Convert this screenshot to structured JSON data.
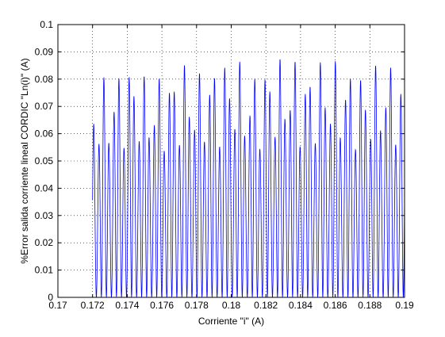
{
  "chart_data": {
    "type": "line",
    "title": "",
    "xlabel": "Corriente \"i\" (A)",
    "ylabel": "%Error salida corriente lineal CORDIC \"Ln(i)\" (A)",
    "xlim": [
      0.17,
      0.19
    ],
    "ylim": [
      0,
      0.1
    ],
    "grid": true,
    "x_ticks": [
      "0.17",
      "0.172",
      "0.174",
      "0.176",
      "0.178",
      "0.18",
      "0.182",
      "0.184",
      "0.186",
      "0.188",
      "0.19"
    ],
    "y_ticks": [
      "0",
      "0.01",
      "0.02",
      "0.03",
      "0.04",
      "0.05",
      "0.06",
      "0.07",
      "0.08",
      "0.09",
      "0.1"
    ],
    "series": [
      {
        "color": "#0000ff",
        "x_range": [
          0.172,
          0.19
        ],
        "envelope_peaks": [
          [
            0.1722,
            0.079
          ],
          [
            0.1733,
            0.083
          ],
          [
            0.1739,
            0.086
          ],
          [
            0.1745,
            0.087
          ],
          [
            0.1751,
            0.08
          ],
          [
            0.1763,
            0.083
          ],
          [
            0.1774,
            0.087
          ],
          [
            0.1781,
            0.082
          ],
          [
            0.1787,
            0.087
          ],
          [
            0.1793,
            0.086
          ],
          [
            0.18,
            0.09
          ],
          [
            0.1811,
            0.082
          ],
          [
            0.1823,
            0.088
          ],
          [
            0.183,
            0.088
          ],
          [
            0.1835,
            0.09
          ],
          [
            0.1841,
            0.083
          ],
          [
            0.1848,
            0.087
          ],
          [
            0.1854,
            0.089
          ],
          [
            0.1859,
            0.087
          ],
          [
            0.1871,
            0.085
          ],
          [
            0.1877,
            0.083
          ],
          [
            0.1889,
            0.087
          ],
          [
            0.1895,
            0.087
          ],
          [
            0.19,
            0.077
          ]
        ],
        "min_value": 0
      }
    ]
  }
}
